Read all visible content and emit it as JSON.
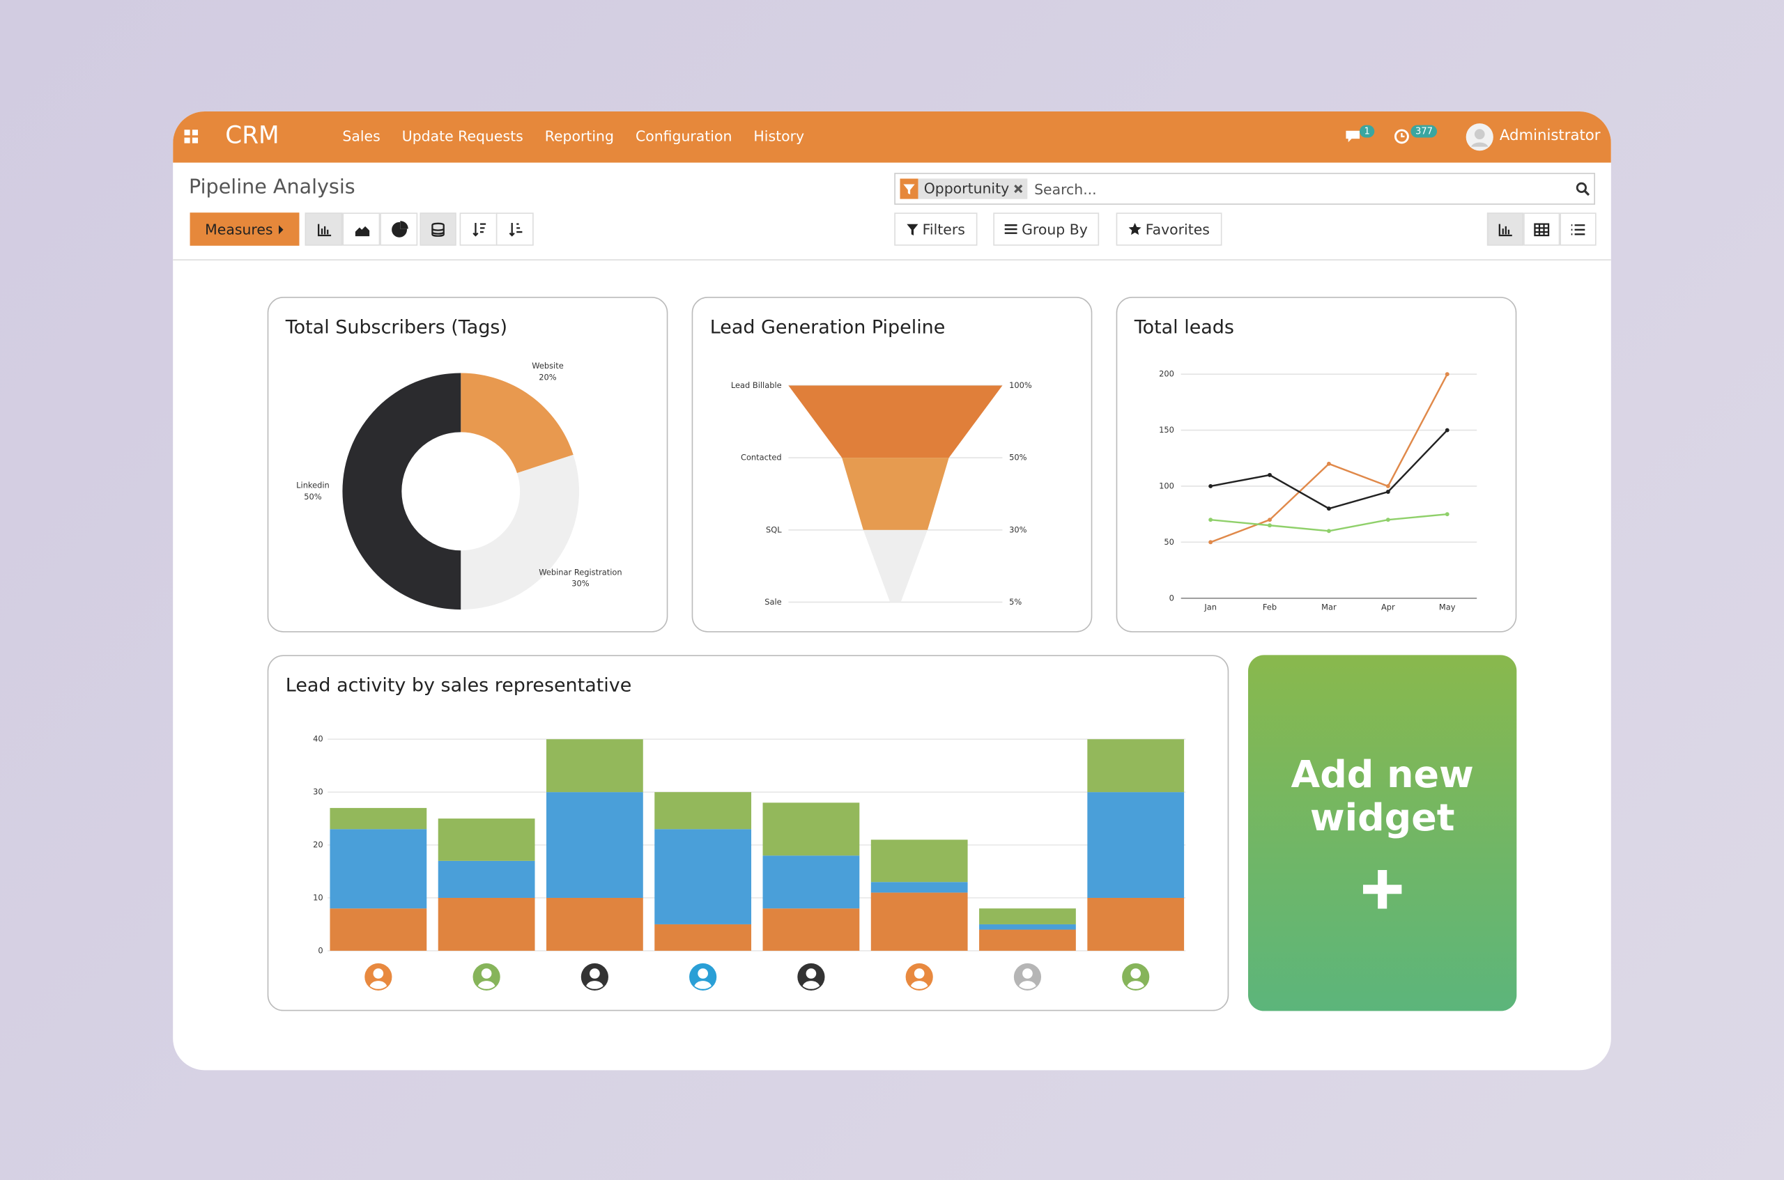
{
  "navbar": {
    "brand": "CRM",
    "menu": [
      "Sales",
      "Update Requests",
      "Reporting",
      "Configuration",
      "History"
    ],
    "messages_badge": 1,
    "activities_badge": 377,
    "user": "Administrator"
  },
  "control_panel": {
    "title": "Pipeline Analysis",
    "measures": "Measures",
    "facet": "Opportunity",
    "search_placeholder": "Search...",
    "filters": "Filters",
    "group_by": "Group By",
    "favorites": "Favorites"
  },
  "chart_data": [
    {
      "type": "pie",
      "title": "Total Subscribers (Tags)",
      "categories": [
        "Website",
        "Webinar Registration",
        "Linkedin"
      ],
      "values": [
        20,
        30,
        50
      ],
      "value_labels": [
        "20%",
        "30%",
        "50%"
      ],
      "colors": [
        "#e8994f",
        "#efefef",
        "#2b2b2e"
      ]
    },
    {
      "type": "funnel",
      "title": "Lead Generation Pipeline",
      "categories": [
        "Lead Billable",
        "Contacted",
        "SQL",
        "Sale"
      ],
      "values": [
        100,
        50,
        30,
        5
      ],
      "value_labels": [
        "100%",
        "50%",
        "30%",
        "5%"
      ],
      "colors": [
        "#e07f3a",
        "#e69b50",
        "#eeeeee"
      ]
    },
    {
      "type": "line",
      "title": "Total leads",
      "categories": [
        "Jan",
        "Feb",
        "Mar",
        "Apr",
        "May"
      ],
      "ylim": [
        0,
        200
      ],
      "yticks": [
        0,
        50,
        100,
        150,
        200
      ],
      "grid": true,
      "series": [
        {
          "color": "#e0894a",
          "values": [
            50,
            70,
            120,
            100,
            200
          ]
        },
        {
          "color": "#222222",
          "values": [
            100,
            110,
            80,
            95,
            150
          ]
        },
        {
          "color": "#8fd06a",
          "values": [
            70,
            65,
            60,
            70,
            75
          ]
        }
      ]
    },
    {
      "type": "stacked-bar",
      "title": "Lead activity by sales representative",
      "categories": [
        null,
        null,
        null,
        null,
        null,
        null,
        null,
        null
      ],
      "ylim": [
        0,
        40
      ],
      "yticks": [
        0,
        10,
        20,
        30,
        40
      ],
      "grid": true,
      "series": [
        {
          "color": "#e0843f",
          "values": [
            8,
            10,
            10,
            5,
            8,
            11,
            4,
            10
          ]
        },
        {
          "color": "#4a9fd9",
          "values": [
            15,
            7,
            20,
            18,
            10,
            2,
            1,
            20
          ]
        },
        {
          "color": "#93b85b",
          "values": [
            4,
            8,
            10,
            7,
            10,
            8,
            3,
            10
          ]
        }
      ]
    }
  ],
  "add_widget": {
    "label": "Add new widget"
  }
}
